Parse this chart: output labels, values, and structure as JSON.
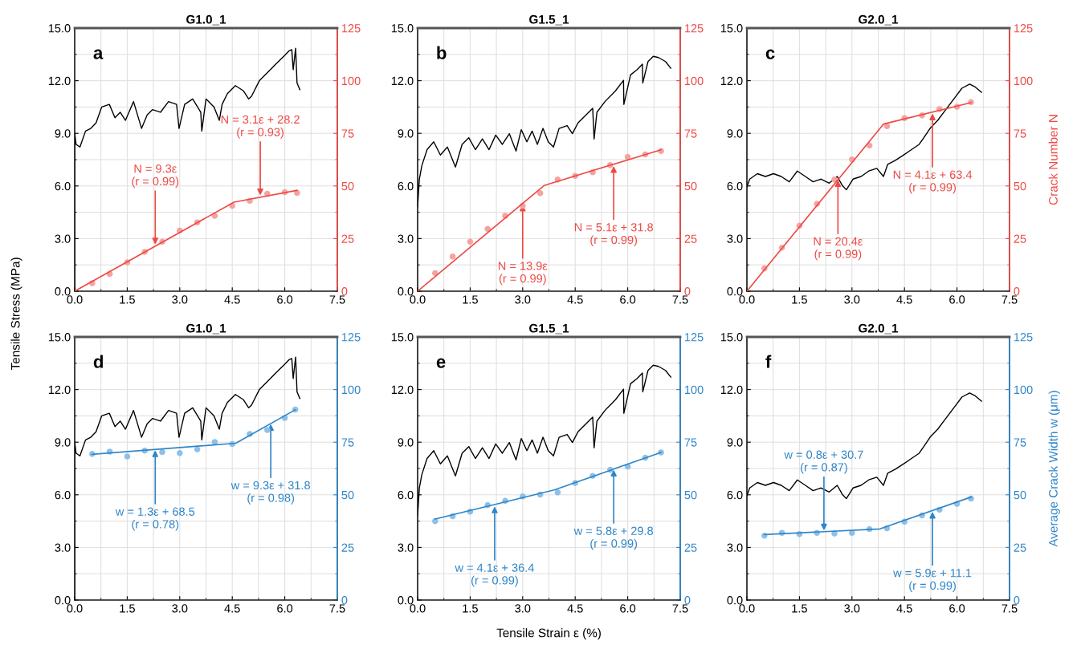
{
  "chart_data": [
    {
      "type": "line",
      "title": "G1.0_1",
      "ylabel": "Tensile Stress (MPa)",
      "grid": true,
      "xlim": [
        0,
        7.5
      ],
      "xticks": [
        {
          "value": 0,
          "label": "0.0"
        },
        {
          "value": 1.5,
          "label": "1.5"
        },
        {
          "value": 3,
          "label": "3.0"
        },
        {
          "value": 4.5,
          "label": "4.5"
        },
        {
          "value": 6,
          "label": "6.0"
        },
        {
          "value": 7.5,
          "label": "7.5"
        }
      ],
      "ylim": [
        0,
        15
      ],
      "yticks": [
        {
          "value": 0,
          "label": "0.0"
        },
        {
          "value": 3,
          "label": "3.0"
        },
        {
          "value": 6,
          "label": "6.0"
        },
        {
          "value": 9,
          "label": "9.0"
        },
        {
          "value": 12,
          "label": "12.0"
        },
        {
          "value": 15,
          "label": "15.0"
        }
      ],
      "y2lim": [
        0,
        125
      ],
      "y2ticks": [
        0,
        25,
        50,
        75,
        100,
        125
      ],
      "annotations": [
        "a",
        {
          "text": "N = 9.3ε\n(r = 0.99)",
          "x": 2.3,
          "y": 2.6
        },
        {
          "text": "N = 3.1ε + 28.2\n(r = 0.93)",
          "x": 5.3,
          "y": 5.4
        }
      ],
      "series": [
        {
          "type": "line",
          "color": "#000000",
          "x": [
            0,
            0,
            0.04,
            0.15,
            0.31,
            0.46,
            0.61,
            0.77,
            0.99,
            1.15,
            1.3,
            1.45,
            1.68,
            1.91,
            2.07,
            2.22,
            2.45,
            2.68,
            2.91,
            2.98,
            3.14,
            3.37,
            3.6,
            3.63,
            3.75,
            3.98,
            4.13,
            4.21,
            4.36,
            4.59,
            4.82,
            4.97,
            5.05,
            5.28,
            5.59,
            5.74,
            5.97,
            6.12,
            6.2,
            6.24,
            6.31,
            6.35,
            6.43
          ],
          "values": [
            0,
            9.0,
            8.37,
            8.22,
            9.13,
            9.28,
            9.59,
            10.5,
            10.65,
            9.89,
            10.2,
            9.74,
            10.81,
            9.28,
            10.05,
            10.35,
            10.2,
            10.81,
            10.65,
            9.28,
            10.65,
            10.96,
            10.2,
            9.13,
            10.96,
            10.5,
            9.74,
            10.65,
            11.26,
            11.72,
            11.42,
            10.96,
            11.11,
            12.02,
            12.63,
            12.94,
            13.39,
            13.7,
            13.77,
            12.63,
            13.85,
            11.87,
            11.49
          ]
        },
        {
          "type": "scatter",
          "axis": "y2",
          "color": "#f5a3a0",
          "x": [
            0.5,
            1,
            1.5,
            2,
            2.5,
            3,
            3.5,
            4,
            4.5,
            5,
            5.5,
            6,
            6.35
          ],
          "values": [
            3.8,
            8.2,
            13.7,
            18.7,
            23.5,
            28.8,
            32.7,
            35.8,
            40.6,
            42.9,
            46.3,
            47.0,
            46.7
          ]
        },
        {
          "type": "line",
          "axis": "y2",
          "color": "#ee4a45",
          "x": [
            0,
            4.55,
            6.35
          ],
          "values": [
            0,
            42.3,
            47.9
          ]
        }
      ]
    },
    {
      "type": "line",
      "title": "G1.5_1",
      "grid": true,
      "xlim": [
        0,
        7.5
      ],
      "xticks": [
        {
          "value": 0,
          "label": "0.0"
        },
        {
          "value": 1.5,
          "label": "1.5"
        },
        {
          "value": 3,
          "label": "3.0"
        },
        {
          "value": 4.5,
          "label": "4.5"
        },
        {
          "value": 6,
          "label": "6.0"
        },
        {
          "value": 7.5,
          "label": "7.5"
        }
      ],
      "ylim": [
        0,
        15
      ],
      "yticks": [
        {
          "value": 0,
          "label": "0.0"
        },
        {
          "value": 3,
          "label": "3.0"
        },
        {
          "value": 6,
          "label": "6.0"
        },
        {
          "value": 9,
          "label": "9.0"
        },
        {
          "value": 12,
          "label": "12.0"
        },
        {
          "value": 15,
          "label": "15.0"
        }
      ],
      "y2lim": [
        0,
        125
      ],
      "y2ticks": [
        0,
        25,
        50,
        75,
        100,
        125
      ],
      "annotations": [
        "b",
        {
          "text": "N = 13.9ε\n(r = 0.99)",
          "x": 3.0,
          "y": 5.0
        },
        {
          "text": "N = 5.1ε + 31.8\n(r = 0.99)",
          "x": 5.6,
          "y": 7.2
        }
      ],
      "series": [
        {
          "type": "line",
          "color": "#000000",
          "x": [
            0,
            0.05,
            0.12,
            0.27,
            0.46,
            0.65,
            0.85,
            1.08,
            1.27,
            1.46,
            1.65,
            1.85,
            2.04,
            2.23,
            2.42,
            2.62,
            2.81,
            2.96,
            3.12,
            3.27,
            3.42,
            3.58,
            3.73,
            3.88,
            4.04,
            4.27,
            4.42,
            4.58,
            4.81,
            5.0,
            5.04,
            5.12,
            5.35,
            5.65,
            5.88,
            5.89,
            6.08,
            6.27,
            6.42,
            6.43,
            6.58,
            6.73,
            6.88,
            7.08,
            7.23
          ],
          "values": [
            4.8,
            6.4,
            7.15,
            8.07,
            8.52,
            7.76,
            8.22,
            7.08,
            8.37,
            8.75,
            8.07,
            8.68,
            8.07,
            8.9,
            8.37,
            8.98,
            7.99,
            9.21,
            8.52,
            9.13,
            8.37,
            9.28,
            8.52,
            8.22,
            9.28,
            9.44,
            8.98,
            9.59,
            10.05,
            10.43,
            8.68,
            10.2,
            10.81,
            11.42,
            12.02,
            10.65,
            12.33,
            12.63,
            12.94,
            11.87,
            13.09,
            13.39,
            13.32,
            13.09,
            12.71
          ]
        },
        {
          "type": "scatter",
          "axis": "y2",
          "color": "#f5a3a0",
          "x": [
            0.5,
            1,
            1.5,
            2,
            2.5,
            3,
            3.5,
            4,
            4.5,
            5,
            5.5,
            6,
            6.5,
            6.95
          ],
          "values": [
            8.6,
            16.5,
            23.5,
            29.6,
            35.8,
            40.6,
            46.6,
            53.0,
            54.8,
            56.5,
            59.9,
            63.8,
            65.0,
            66.6
          ]
        },
        {
          "type": "line",
          "axis": "y2",
          "color": "#ee4a45",
          "x": [
            0,
            3.61,
            6.95
          ],
          "values": [
            0,
            50.2,
            67.2
          ]
        }
      ]
    },
    {
      "type": "line",
      "title": "G2.0_1",
      "y2label": "Crack Number N",
      "grid": true,
      "xlim": [
        0,
        7.5
      ],
      "xticks": [
        {
          "value": 0,
          "label": "0.0"
        },
        {
          "value": 1.5,
          "label": "1.5"
        },
        {
          "value": 3,
          "label": "3.0"
        },
        {
          "value": 4.5,
          "label": "4.5"
        },
        {
          "value": 6,
          "label": "6.0"
        },
        {
          "value": 7.5,
          "label": "7.5"
        }
      ],
      "ylim": [
        0,
        15
      ],
      "yticks": [
        {
          "value": 0,
          "label": "0.0"
        },
        {
          "value": 3,
          "label": "3.0"
        },
        {
          "value": 6,
          "label": "6.0"
        },
        {
          "value": 9,
          "label": "9.0"
        },
        {
          "value": 12,
          "label": "12.0"
        },
        {
          "value": 15,
          "label": "15.0"
        }
      ],
      "y2lim": [
        0,
        125
      ],
      "y2ticks": [
        0,
        25,
        50,
        75,
        100,
        125
      ],
      "annotations": [
        "c",
        {
          "text": "N = 20.4ε\n(r = 0.99)",
          "x": 2.6,
          "y": 6.4
        },
        {
          "text": "N = 4.1ε + 63.4\n(r = 0.99)",
          "x": 5.3,
          "y": 10.2
        }
      ],
      "series": [
        {
          "type": "line",
          "color": "#000000",
          "x": [
            0,
            0.08,
            0.3,
            0.53,
            0.76,
            0.98,
            1.21,
            1.44,
            1.67,
            1.89,
            2.12,
            2.35,
            2.58,
            2.73,
            2.84,
            3.03,
            3.26,
            3.48,
            3.71,
            3.9,
            4.02,
            4.24,
            4.47,
            4.7,
            4.92,
            5.08,
            5.23,
            5.45,
            5.68,
            5.91,
            6.14,
            6.36,
            6.52,
            6.7
          ],
          "values": [
            5.94,
            6.39,
            6.7,
            6.54,
            6.7,
            6.54,
            6.24,
            6.85,
            6.54,
            6.24,
            6.39,
            6.16,
            6.54,
            6.01,
            5.78,
            6.39,
            6.54,
            6.85,
            7.0,
            6.54,
            7.23,
            7.46,
            7.76,
            8.07,
            8.37,
            8.83,
            9.28,
            9.74,
            10.35,
            10.96,
            11.57,
            11.8,
            11.64,
            11.34
          ]
        },
        {
          "type": "scatter",
          "axis": "y2",
          "color": "#f5a3a0",
          "x": [
            0.5,
            1,
            1.5,
            2,
            2.5,
            3,
            3.5,
            4,
            4.5,
            5,
            5.5,
            6,
            6.4
          ],
          "values": [
            10.8,
            20.7,
            31.1,
            41.5,
            53.0,
            62.6,
            69.2,
            78.4,
            82.2,
            83.5,
            86.5,
            87.6,
            89.8
          ]
        },
        {
          "type": "line",
          "axis": "y2",
          "color": "#ee4a45",
          "x": [
            0,
            3.9,
            6.4
          ],
          "values": [
            0,
            79.4,
            89.6
          ]
        }
      ]
    },
    {
      "type": "line",
      "title": "G1.0_1",
      "grid": true,
      "xlim": [
        0,
        7.5
      ],
      "xticks": [
        {
          "value": 0,
          "label": "0.0"
        },
        {
          "value": 1.5,
          "label": "1.5"
        },
        {
          "value": 3,
          "label": "3.0"
        },
        {
          "value": 4.5,
          "label": "4.5"
        },
        {
          "value": 6,
          "label": "6.0"
        },
        {
          "value": 7.5,
          "label": "7.5"
        }
      ],
      "ylim": [
        0,
        15
      ],
      "yticks": [
        {
          "value": 0,
          "label": "0.0"
        },
        {
          "value": 3,
          "label": "3.0"
        },
        {
          "value": 6,
          "label": "6.0"
        },
        {
          "value": 9,
          "label": "9.0"
        },
        {
          "value": 12,
          "label": "12.0"
        },
        {
          "value": 15,
          "label": "15.0"
        }
      ],
      "y2lim": [
        0,
        125
      ],
      "y2ticks": [
        0,
        25,
        50,
        75,
        100,
        125
      ],
      "annotations": [
        "d",
        {
          "text": "w = 1.3ε + 68.5\n(r = 0.78)",
          "x": 2.3,
          "y": 8.6
        },
        {
          "text": "w = 9.3ε + 31.8\n(r = 0.98)",
          "x": 5.6,
          "y": 10.1
        }
      ],
      "series": [
        {
          "type": "line",
          "color": "#000000",
          "x": [
            0,
            0,
            0.04,
            0.15,
            0.31,
            0.46,
            0.61,
            0.77,
            0.99,
            1.15,
            1.3,
            1.45,
            1.68,
            1.91,
            2.07,
            2.22,
            2.45,
            2.68,
            2.91,
            2.98,
            3.14,
            3.37,
            3.6,
            3.63,
            3.75,
            3.98,
            4.13,
            4.21,
            4.36,
            4.59,
            4.82,
            4.97,
            5.05,
            5.28,
            5.59,
            5.74,
            5.97,
            6.12,
            6.2,
            6.24,
            6.31,
            6.35,
            6.43
          ],
          "values": [
            0,
            9.0,
            8.37,
            8.22,
            9.13,
            9.28,
            9.59,
            10.5,
            10.65,
            9.89,
            10.2,
            9.74,
            10.81,
            9.28,
            10.05,
            10.35,
            10.2,
            10.81,
            10.65,
            9.28,
            10.65,
            10.96,
            10.2,
            9.13,
            10.96,
            10.5,
            9.74,
            10.65,
            11.26,
            11.72,
            11.42,
            10.96,
            11.11,
            12.02,
            12.63,
            12.94,
            13.39,
            13.7,
            13.77,
            12.63,
            13.85,
            11.87,
            11.49
          ]
        },
        {
          "type": "scatter",
          "axis": "y2",
          "color": "#8ec0e8",
          "x": [
            0.5,
            1,
            1.5,
            2,
            2.5,
            3,
            3.5,
            4,
            4.5,
            5,
            5.5,
            6,
            6.3
          ],
          "values": [
            69.4,
            70.5,
            68.2,
            71.0,
            70.3,
            69.8,
            71.6,
            75.1,
            74.1,
            78.9,
            80.8,
            86.5,
            90.5
          ]
        },
        {
          "type": "line",
          "axis": "y2",
          "color": "#2f86c8",
          "x": [
            0.5,
            4.6,
            6.3
          ],
          "values": [
            69.2,
            74.5,
            90.4
          ]
        }
      ]
    },
    {
      "type": "line",
      "title": "G1.5_1",
      "xlabel": "Tensile Strain ε (%)",
      "grid": true,
      "xlim": [
        0,
        7.5
      ],
      "xticks": [
        {
          "value": 0,
          "label": "0.0"
        },
        {
          "value": 1.5,
          "label": "1.5"
        },
        {
          "value": 3,
          "label": "3.0"
        },
        {
          "value": 4.5,
          "label": "4.5"
        },
        {
          "value": 6,
          "label": "6.0"
        },
        {
          "value": 7.5,
          "label": "7.5"
        }
      ],
      "ylim": [
        0,
        15
      ],
      "yticks": [
        {
          "value": 0,
          "label": "0.0"
        },
        {
          "value": 3,
          "label": "3.0"
        },
        {
          "value": 6,
          "label": "6.0"
        },
        {
          "value": 9,
          "label": "9.0"
        },
        {
          "value": 12,
          "label": "12.0"
        },
        {
          "value": 15,
          "label": "15.0"
        }
      ],
      "y2lim": [
        0,
        125
      ],
      "y2ticks": [
        0,
        25,
        50,
        75,
        100,
        125
      ],
      "annotations": [
        "e",
        {
          "text": "w = 4.1ε + 36.4\n(r = 0.99)",
          "x": 2.2,
          "y": 5.4
        },
        {
          "text": "w = 5.8ε + 29.8\n(r = 0.99)",
          "x": 5.6,
          "y": 7.5
        }
      ],
      "series": [
        {
          "type": "line",
          "color": "#000000",
          "x": [
            0,
            0.05,
            0.12,
            0.27,
            0.46,
            0.65,
            0.85,
            1.08,
            1.27,
            1.46,
            1.65,
            1.85,
            2.04,
            2.23,
            2.42,
            2.62,
            2.81,
            2.96,
            3.12,
            3.27,
            3.42,
            3.58,
            3.73,
            3.88,
            4.04,
            4.27,
            4.42,
            4.58,
            4.81,
            5.0,
            5.04,
            5.12,
            5.35,
            5.65,
            5.88,
            5.89,
            6.08,
            6.27,
            6.42,
            6.43,
            6.58,
            6.73,
            6.88,
            7.08,
            7.23
          ],
          "values": [
            4.8,
            6.4,
            7.15,
            8.07,
            8.52,
            7.76,
            8.22,
            7.08,
            8.37,
            8.75,
            8.07,
            8.68,
            8.07,
            8.9,
            8.37,
            8.98,
            7.99,
            9.21,
            8.52,
            9.13,
            8.37,
            9.28,
            8.52,
            8.22,
            9.28,
            9.44,
            8.98,
            9.59,
            10.05,
            10.43,
            8.68,
            10.2,
            10.81,
            11.42,
            12.02,
            10.65,
            12.33,
            12.63,
            12.94,
            11.87,
            13.09,
            13.39,
            13.32,
            13.09,
            12.71
          ]
        },
        {
          "type": "scatter",
          "axis": "y2",
          "color": "#8ec0e8",
          "x": [
            0.5,
            1,
            1.5,
            2,
            2.5,
            3,
            3.5,
            4,
            4.5,
            5,
            5.5,
            6,
            6.5,
            6.95
          ],
          "values": [
            37.5,
            39.8,
            42.0,
            45.1,
            47.1,
            49.2,
            50.1,
            51.1,
            55.6,
            59.0,
            61.9,
            63.4,
            67.6,
            70.1
          ]
        },
        {
          "type": "line",
          "axis": "y2",
          "color": "#2f86c8",
          "x": [
            0.5,
            3.9,
            6.95
          ],
          "values": [
            38.5,
            52.3,
            70.1
          ]
        }
      ]
    },
    {
      "type": "line",
      "title": "G2.0_1",
      "y2label": "Average Crack Width w (μm)",
      "grid": true,
      "xlim": [
        0,
        7.5
      ],
      "xticks": [
        {
          "value": 0,
          "label": "0.0"
        },
        {
          "value": 1.5,
          "label": "1.5"
        },
        {
          "value": 3,
          "label": "3.0"
        },
        {
          "value": 4.5,
          "label": "4.5"
        },
        {
          "value": 6,
          "label": "6.0"
        },
        {
          "value": 7.5,
          "label": "7.5"
        }
      ],
      "ylim": [
        0,
        15
      ],
      "yticks": [
        {
          "value": 0,
          "label": "0.0"
        },
        {
          "value": 3,
          "label": "3.0"
        },
        {
          "value": 6,
          "label": "6.0"
        },
        {
          "value": 9,
          "label": "9.0"
        },
        {
          "value": 12,
          "label": "12.0"
        },
        {
          "value": 15,
          "label": "15.0"
        }
      ],
      "y2lim": [
        0,
        125
      ],
      "y2ticks": [
        0,
        25,
        50,
        75,
        100,
        125
      ],
      "annotations": [
        "f",
        {
          "text": "w = 0.8ε + 30.7\n(r = 0.87)",
          "x": 2.2,
          "y": 3.9
        },
        {
          "text": "w = 5.9ε + 11.1\n(r = 0.99)",
          "x": 5.3,
          "y": 5.1
        }
      ],
      "series": [
        {
          "type": "line",
          "color": "#000000",
          "x": [
            0,
            0.08,
            0.3,
            0.53,
            0.76,
            0.98,
            1.21,
            1.44,
            1.67,
            1.89,
            2.12,
            2.35,
            2.58,
            2.73,
            2.84,
            3.03,
            3.26,
            3.48,
            3.71,
            3.9,
            4.02,
            4.24,
            4.47,
            4.7,
            4.92,
            5.08,
            5.23,
            5.45,
            5.68,
            5.91,
            6.14,
            6.36,
            6.52,
            6.7
          ],
          "values": [
            5.94,
            6.39,
            6.7,
            6.54,
            6.7,
            6.54,
            6.24,
            6.85,
            6.54,
            6.24,
            6.39,
            6.16,
            6.54,
            6.01,
            5.78,
            6.39,
            6.54,
            6.85,
            7.0,
            6.54,
            7.23,
            7.46,
            7.76,
            8.07,
            8.37,
            8.83,
            9.28,
            9.74,
            10.35,
            10.96,
            11.57,
            11.8,
            11.64,
            11.34
          ]
        },
        {
          "type": "scatter",
          "axis": "y2",
          "color": "#8ec0e8",
          "x": [
            0.5,
            1,
            1.5,
            2,
            2.5,
            3,
            3.5,
            4,
            4.5,
            5,
            5.5,
            6,
            6.4
          ],
          "values": [
            30.6,
            31.9,
            31.3,
            31.9,
            31.6,
            31.9,
            33.7,
            34.1,
            37.2,
            40.2,
            42.9,
            45.7,
            48.2
          ]
        },
        {
          "type": "line",
          "axis": "y2",
          "color": "#2f86c8",
          "x": [
            0.5,
            3.8,
            6.4
          ],
          "values": [
            31.1,
            33.8,
            48.9
          ]
        }
      ]
    }
  ]
}
